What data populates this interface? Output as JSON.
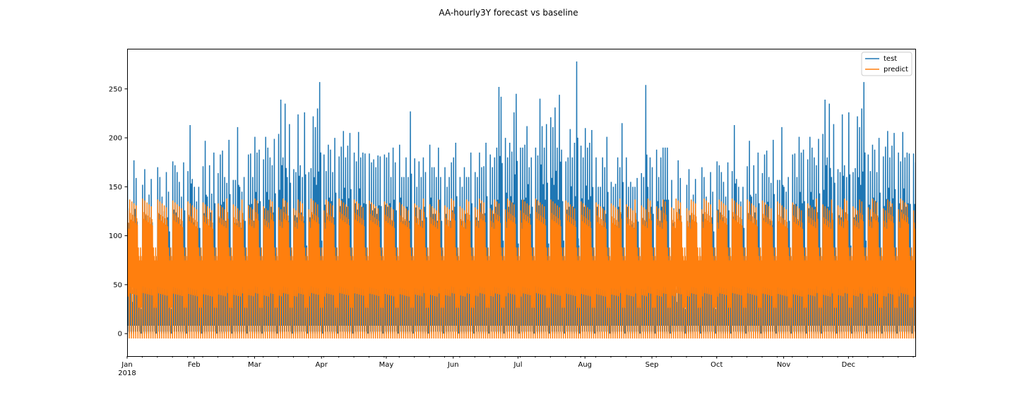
{
  "chart_data": {
    "type": "line",
    "title": "AA-hourly3Y forecast vs baseline",
    "xlabel": "",
    "ylabel": "",
    "x_range": [
      "2018-01-01",
      "2018-12-31"
    ],
    "ylim": [
      -23,
      291
    ],
    "yticks": [
      0,
      50,
      100,
      150,
      200,
      250
    ],
    "xticks": [
      {
        "date": "2018-01-01",
        "label": "Jan",
        "sublabel": "2018"
      },
      {
        "date": "2018-02-01",
        "label": "Feb"
      },
      {
        "date": "2018-03-01",
        "label": "Mar"
      },
      {
        "date": "2018-04-01",
        "label": "Apr"
      },
      {
        "date": "2018-05-01",
        "label": "May"
      },
      {
        "date": "2018-06-01",
        "label": "Jun"
      },
      {
        "date": "2018-07-01",
        "label": "Jul"
      },
      {
        "date": "2018-08-01",
        "label": "Aug"
      },
      {
        "date": "2018-09-01",
        "label": "Sep"
      },
      {
        "date": "2018-10-01",
        "label": "Oct"
      },
      {
        "date": "2018-11-01",
        "label": "Nov"
      },
      {
        "date": "2018-12-01",
        "label": "Dec"
      }
    ],
    "grid": false,
    "legend_position": "top-right",
    "series": [
      {
        "name": "test",
        "color": "#1f77b4",
        "daily_peaks": [
          157,
          128,
          45,
          177,
          159,
          60,
          35,
          152,
          168,
          60,
          142,
          158,
          50,
          62,
          170,
          160,
          140,
          125,
          165,
          145,
          35,
          176,
          172,
          165,
          155,
          140,
          175,
          60,
          166,
          213,
          158,
          150,
          135,
          150,
          75,
          171,
          197,
          140,
          172,
          143,
          185,
          65,
          164,
          183,
          187,
          160,
          154,
          198,
          75,
          157,
          157,
          211,
          150,
          145,
          160,
          80,
          183,
          184,
          160,
          201,
          185,
          188,
          75,
          178,
          201,
          190,
          180,
          172,
          199,
          82,
          204,
          239,
          180,
          235,
          160,
          214,
          85,
          168,
          165,
          224,
          172,
          160,
          226,
          90,
          165,
          169,
          222,
          211,
          230,
          257,
          95,
          183,
          166,
          193,
          188,
          165,
          200,
          85,
          181,
          191,
          207,
          180,
          192,
          205,
          80,
          185,
          176,
          206,
          180,
          185,
          184,
          80,
          184,
          175,
          178,
          170,
          182,
          181,
          85,
          183,
          180,
          185,
          160,
          190,
          175,
          80,
          193,
          160,
          160,
          180,
          160,
          227,
          75,
          179,
          150,
          176,
          160,
          180,
          165,
          80,
          193,
          170,
          170,
          160,
          190,
          160,
          85,
          170,
          150,
          160,
          175,
          180,
          195,
          82,
          160,
          150,
          170,
          160,
          160,
          185,
          80,
          165,
          160,
          185,
          170,
          171,
          195,
          78,
          183,
          170,
          180,
          190,
          252,
          242,
          95,
          200,
          180,
          195,
          186,
          226,
          245,
          92,
          190,
          190,
          193,
          212,
          170,
          180,
          88,
          190,
          182,
          240,
          212,
          190,
          214,
          92,
          221,
          211,
          231,
          190,
          244,
          188,
          95,
          176,
          180,
          209,
          180,
          195,
          278,
          90,
          192,
          180,
          210,
          190,
          195,
          208,
          85,
          180,
          150,
          150,
          180,
          170,
          201,
          80,
          155,
          150,
          153,
          180,
          170,
          215,
          78,
          180,
          150,
          155,
          150,
          150,
          159,
          72,
          164,
          160,
          254,
          150,
          180,
          170,
          65,
          188,
          160,
          180,
          190,
          190,
          190,
          55
        ]
      },
      {
        "name": "predict",
        "color": "#ff7f0e",
        "weekday_peak": 130,
        "weekend_peak": 88,
        "trough": -5
      }
    ]
  }
}
